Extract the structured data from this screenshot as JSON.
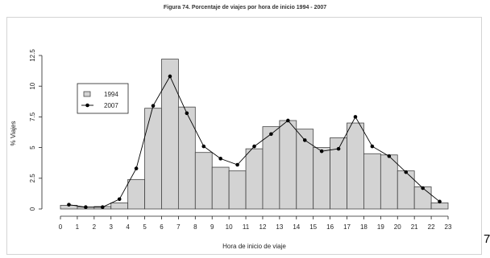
{
  "page_tag": "7",
  "chart_data": {
    "type": "bar",
    "title": "Figura 74. Porcentaje de viajes por hora de inicio 1994 - 2007",
    "xlabel": "Hora de inicio de viaje",
    "ylabel": "% Viajes",
    "x_ticks": [
      "0",
      "1",
      "2",
      "3",
      "4",
      "5",
      "6",
      "7",
      "8",
      "9",
      "10",
      "11",
      "12",
      "13",
      "14",
      "15",
      "16",
      "17",
      "18",
      "19",
      "20",
      "21",
      "22",
      "23"
    ],
    "y_ticks": [
      "0",
      "2.5",
      "5",
      "7.5",
      "10",
      "12.5"
    ],
    "xlim": [
      0,
      23
    ],
    "ylim": [
      0,
      12.5
    ],
    "grid": false,
    "legend_position": "top-left",
    "series": [
      {
        "name": "1994",
        "type": "bar",
        "bin_start": [
          0,
          1,
          2,
          3,
          4,
          5,
          6,
          7,
          8,
          9,
          10,
          11,
          12,
          13,
          14,
          15,
          16,
          17,
          18,
          19,
          20,
          21,
          22
        ],
        "values": [
          0.3,
          0.15,
          0.2,
          0.5,
          2.4,
          8.2,
          12.2,
          8.3,
          4.6,
          3.4,
          3.1,
          4.9,
          6.7,
          7.2,
          6.5,
          5.0,
          5.8,
          7.0,
          4.5,
          4.4,
          3.1,
          1.8,
          0.5
        ],
        "color": "#d3d3d3"
      },
      {
        "name": "2007",
        "type": "line",
        "x": [
          0.5,
          1.5,
          2.5,
          3.5,
          4.5,
          5.5,
          6.5,
          7.5,
          8.5,
          9.5,
          10.5,
          11.5,
          12.5,
          13.5,
          14.5,
          15.5,
          16.5,
          17.5,
          18.5,
          19.5,
          20.5,
          21.5,
          22.5
        ],
        "values": [
          0.35,
          0.15,
          0.15,
          0.8,
          3.3,
          8.4,
          10.8,
          7.8,
          5.1,
          4.1,
          3.6,
          5.1,
          6.1,
          7.2,
          5.6,
          4.7,
          4.9,
          7.5,
          5.1,
          4.3,
          3.0,
          1.7,
          0.6
        ],
        "color": "#000000"
      }
    ]
  }
}
